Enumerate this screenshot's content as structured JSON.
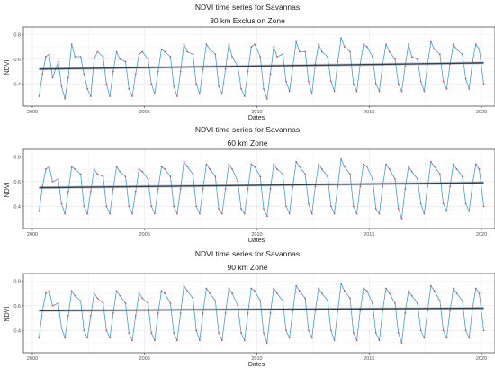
{
  "colors": {
    "panel_border": "#333333",
    "grid": "#ebebeb",
    "series_line": "#3a9fd6",
    "series_points": "#e0484a",
    "trend_line": "#2f3f4f",
    "ribbon": "#b5b5b5"
  },
  "chart_data": [
    {
      "type": "line",
      "title": "NDVI time series for Savannas",
      "subtitle": "30 km Exclusion Zone",
      "xlabel": "Dates",
      "ylabel": "NDVI",
      "xlim": [
        1999.6,
        2020.6
      ],
      "ylim": [
        0.22,
        0.86
      ],
      "xticks": [
        2000,
        2005,
        2010,
        2015,
        2020
      ],
      "yticks": [
        0.4,
        0.6,
        0.8
      ],
      "grid": true,
      "series": [
        {
          "x": [
            2000.3,
            2000.45,
            2000.6,
            2000.75,
            2000.9,
            2001.15,
            2001.3,
            2001.45,
            2001.6,
            2001.75,
            2001.9,
            2002.15,
            2002.3,
            2002.45,
            2002.6,
            2002.75,
            2002.9,
            2003.15,
            2003.3,
            2003.45,
            2003.6,
            2003.75,
            2003.9,
            2004.15,
            2004.3,
            2004.45,
            2004.6,
            2004.75,
            2004.9,
            2005.15,
            2005.3,
            2005.45,
            2005.6,
            2005.75,
            2005.9,
            2006.15,
            2006.3,
            2006.45,
            2006.6,
            2006.75,
            2006.9,
            2007.15,
            2007.3,
            2007.45,
            2007.6,
            2007.75,
            2007.9,
            2008.15,
            2008.3,
            2008.45,
            2008.6,
            2008.75,
            2008.9,
            2009.15,
            2009.3,
            2009.45,
            2009.6,
            2009.75,
            2009.9,
            2010.15,
            2010.3,
            2010.45,
            2010.6,
            2010.75,
            2010.9,
            2011.15,
            2011.3,
            2011.45,
            2011.6,
            2011.75,
            2011.9,
            2012.15,
            2012.3,
            2012.45,
            2012.6,
            2012.75,
            2012.9,
            2013.15,
            2013.3,
            2013.45,
            2013.6,
            2013.75,
            2013.9,
            2014.15,
            2014.3,
            2014.45,
            2014.6,
            2014.75,
            2014.9,
            2015.15,
            2015.3,
            2015.45,
            2015.6,
            2015.75,
            2015.9,
            2016.15,
            2016.3,
            2016.45,
            2016.6,
            2016.75,
            2016.9,
            2017.15,
            2017.3,
            2017.45,
            2017.6,
            2017.75,
            2017.9,
            2018.15,
            2018.3,
            2018.45,
            2018.6,
            2018.75,
            2018.9,
            2019.15,
            2019.3,
            2019.45,
            2019.6,
            2019.75,
            2019.9,
            2020.1
          ],
          "values": [
            0.3,
            0.48,
            0.62,
            0.64,
            0.45,
            0.58,
            0.38,
            0.28,
            0.45,
            0.72,
            0.62,
            0.62,
            0.48,
            0.36,
            0.3,
            0.6,
            0.66,
            0.62,
            0.4,
            0.3,
            0.5,
            0.66,
            0.6,
            0.58,
            0.36,
            0.3,
            0.48,
            0.64,
            0.66,
            0.6,
            0.4,
            0.32,
            0.5,
            0.68,
            0.66,
            0.62,
            0.38,
            0.3,
            0.5,
            0.72,
            0.66,
            0.64,
            0.4,
            0.32,
            0.52,
            0.72,
            0.68,
            0.64,
            0.38,
            0.32,
            0.52,
            0.72,
            0.62,
            0.54,
            0.36,
            0.3,
            0.5,
            0.7,
            0.72,
            0.62,
            0.36,
            0.28,
            0.48,
            0.7,
            0.62,
            0.64,
            0.42,
            0.34,
            0.54,
            0.74,
            0.66,
            0.66,
            0.42,
            0.32,
            0.56,
            0.72,
            0.66,
            0.62,
            0.42,
            0.34,
            0.58,
            0.77,
            0.7,
            0.66,
            0.4,
            0.34,
            0.56,
            0.72,
            0.7,
            0.62,
            0.4,
            0.34,
            0.56,
            0.72,
            0.66,
            0.6,
            0.4,
            0.34,
            0.54,
            0.72,
            0.62,
            0.6,
            0.42,
            0.34,
            0.56,
            0.74,
            0.68,
            0.64,
            0.42,
            0.36,
            0.56,
            0.72,
            0.68,
            0.64,
            0.44,
            0.36,
            0.58,
            0.72,
            0.68,
            0.4
          ]
        }
      ],
      "trend": {
        "x": [
          2000.3,
          2020.1
        ],
        "values": [
          0.52,
          0.57
        ]
      }
    },
    {
      "type": "line",
      "title": "NDVI time series for Savannas",
      "subtitle": "60 km Zone",
      "xlabel": "Dates",
      "ylabel": "NDVI",
      "xlim": [
        1999.6,
        2020.6
      ],
      "ylim": [
        0.22,
        0.86
      ],
      "xticks": [
        2000,
        2005,
        2010,
        2015,
        2020
      ],
      "yticks": [
        0.4,
        0.6,
        0.8
      ],
      "grid": true,
      "series": [
        {
          "x": [
            2000.3,
            2000.45,
            2000.6,
            2000.75,
            2000.9,
            2001.15,
            2001.3,
            2001.45,
            2001.6,
            2001.75,
            2001.9,
            2002.15,
            2002.3,
            2002.45,
            2002.6,
            2002.75,
            2002.9,
            2003.15,
            2003.3,
            2003.45,
            2003.6,
            2003.75,
            2003.9,
            2004.15,
            2004.3,
            2004.45,
            2004.6,
            2004.75,
            2004.9,
            2005.15,
            2005.3,
            2005.45,
            2005.6,
            2005.75,
            2005.9,
            2006.15,
            2006.3,
            2006.45,
            2006.6,
            2006.75,
            2006.9,
            2007.15,
            2007.3,
            2007.45,
            2007.6,
            2007.75,
            2007.9,
            2008.15,
            2008.3,
            2008.45,
            2008.6,
            2008.75,
            2008.9,
            2009.15,
            2009.3,
            2009.45,
            2009.6,
            2009.75,
            2009.9,
            2010.15,
            2010.3,
            2010.45,
            2010.6,
            2010.75,
            2010.9,
            2011.15,
            2011.3,
            2011.45,
            2011.6,
            2011.75,
            2011.9,
            2012.15,
            2012.3,
            2012.45,
            2012.6,
            2012.75,
            2012.9,
            2013.15,
            2013.3,
            2013.45,
            2013.6,
            2013.75,
            2013.9,
            2014.15,
            2014.3,
            2014.45,
            2014.6,
            2014.75,
            2014.9,
            2015.15,
            2015.3,
            2015.45,
            2015.6,
            2015.75,
            2015.9,
            2016.15,
            2016.3,
            2016.45,
            2016.6,
            2016.75,
            2016.9,
            2017.15,
            2017.3,
            2017.45,
            2017.6,
            2017.75,
            2017.9,
            2018.15,
            2018.3,
            2018.45,
            2018.6,
            2018.75,
            2018.9,
            2019.15,
            2019.3,
            2019.45,
            2019.6,
            2019.75,
            2019.9,
            2020.1
          ],
          "values": [
            0.36,
            0.56,
            0.7,
            0.72,
            0.6,
            0.62,
            0.42,
            0.34,
            0.52,
            0.72,
            0.7,
            0.66,
            0.4,
            0.34,
            0.52,
            0.7,
            0.66,
            0.64,
            0.4,
            0.34,
            0.54,
            0.72,
            0.68,
            0.64,
            0.4,
            0.34,
            0.52,
            0.7,
            0.68,
            0.62,
            0.4,
            0.34,
            0.54,
            0.72,
            0.7,
            0.64,
            0.4,
            0.34,
            0.54,
            0.76,
            0.72,
            0.66,
            0.4,
            0.34,
            0.54,
            0.74,
            0.7,
            0.64,
            0.38,
            0.34,
            0.54,
            0.74,
            0.7,
            0.6,
            0.38,
            0.34,
            0.54,
            0.74,
            0.72,
            0.64,
            0.38,
            0.32,
            0.54,
            0.74,
            0.7,
            0.66,
            0.4,
            0.34,
            0.56,
            0.76,
            0.72,
            0.66,
            0.42,
            0.34,
            0.56,
            0.74,
            0.7,
            0.64,
            0.4,
            0.34,
            0.56,
            0.78,
            0.72,
            0.66,
            0.4,
            0.34,
            0.56,
            0.74,
            0.72,
            0.62,
            0.38,
            0.34,
            0.56,
            0.74,
            0.7,
            0.62,
            0.38,
            0.3,
            0.54,
            0.72,
            0.68,
            0.62,
            0.42,
            0.34,
            0.56,
            0.76,
            0.72,
            0.66,
            0.42,
            0.36,
            0.56,
            0.74,
            0.7,
            0.64,
            0.42,
            0.36,
            0.58,
            0.74,
            0.7,
            0.4
          ]
        }
      ],
      "trend": {
        "x": [
          2000.3,
          2020.1
        ],
        "values": [
          0.55,
          0.59
        ]
      }
    },
    {
      "type": "line",
      "title": "NDVI time series for Savannas",
      "subtitle": "90 km Zone",
      "xlabel": "Dates",
      "ylabel": "NDVI",
      "xlim": [
        1999.6,
        2020.6
      ],
      "ylim": [
        0.22,
        0.86
      ],
      "xticks": [
        2000,
        2005,
        2010,
        2015,
        2020
      ],
      "yticks": [
        0.4,
        0.6,
        0.8
      ],
      "grid": true,
      "series": [
        {
          "x": [
            2000.3,
            2000.45,
            2000.6,
            2000.75,
            2000.9,
            2001.15,
            2001.3,
            2001.45,
            2001.6,
            2001.75,
            2001.9,
            2002.15,
            2002.3,
            2002.45,
            2002.6,
            2002.75,
            2002.9,
            2003.15,
            2003.3,
            2003.45,
            2003.6,
            2003.75,
            2003.9,
            2004.15,
            2004.3,
            2004.45,
            2004.6,
            2004.75,
            2004.9,
            2005.15,
            2005.3,
            2005.45,
            2005.6,
            2005.75,
            2005.9,
            2006.15,
            2006.3,
            2006.45,
            2006.6,
            2006.75,
            2006.9,
            2007.15,
            2007.3,
            2007.45,
            2007.6,
            2007.75,
            2007.9,
            2008.15,
            2008.3,
            2008.45,
            2008.6,
            2008.75,
            2008.9,
            2009.15,
            2009.3,
            2009.45,
            2009.6,
            2009.75,
            2009.9,
            2010.15,
            2010.3,
            2010.45,
            2010.6,
            2010.75,
            2010.9,
            2011.15,
            2011.3,
            2011.45,
            2011.6,
            2011.75,
            2011.9,
            2012.15,
            2012.3,
            2012.45,
            2012.6,
            2012.75,
            2012.9,
            2013.15,
            2013.3,
            2013.45,
            2013.6,
            2013.75,
            2013.9,
            2014.15,
            2014.3,
            2014.45,
            2014.6,
            2014.75,
            2014.9,
            2015.15,
            2015.3,
            2015.45,
            2015.6,
            2015.75,
            2015.9,
            2016.15,
            2016.3,
            2016.45,
            2016.6,
            2016.75,
            2016.9,
            2017.15,
            2017.3,
            2017.45,
            2017.6,
            2017.75,
            2017.9,
            2018.15,
            2018.3,
            2018.45,
            2018.6,
            2018.75,
            2018.9,
            2019.15,
            2019.3,
            2019.45,
            2019.6,
            2019.75,
            2019.9,
            2020.1
          ],
          "values": [
            0.34,
            0.56,
            0.7,
            0.72,
            0.6,
            0.62,
            0.42,
            0.34,
            0.52,
            0.72,
            0.68,
            0.64,
            0.4,
            0.34,
            0.52,
            0.7,
            0.66,
            0.62,
            0.4,
            0.34,
            0.54,
            0.72,
            0.68,
            0.62,
            0.38,
            0.32,
            0.52,
            0.7,
            0.66,
            0.62,
            0.38,
            0.32,
            0.54,
            0.72,
            0.7,
            0.62,
            0.38,
            0.32,
            0.54,
            0.76,
            0.72,
            0.66,
            0.4,
            0.32,
            0.54,
            0.74,
            0.7,
            0.64,
            0.38,
            0.32,
            0.54,
            0.74,
            0.7,
            0.6,
            0.38,
            0.32,
            0.54,
            0.74,
            0.72,
            0.64,
            0.38,
            0.3,
            0.54,
            0.74,
            0.7,
            0.64,
            0.4,
            0.34,
            0.56,
            0.76,
            0.72,
            0.66,
            0.4,
            0.34,
            0.56,
            0.74,
            0.7,
            0.64,
            0.4,
            0.32,
            0.56,
            0.78,
            0.72,
            0.66,
            0.38,
            0.32,
            0.56,
            0.74,
            0.72,
            0.62,
            0.38,
            0.32,
            0.56,
            0.74,
            0.7,
            0.62,
            0.38,
            0.3,
            0.54,
            0.72,
            0.68,
            0.62,
            0.4,
            0.34,
            0.56,
            0.76,
            0.72,
            0.64,
            0.4,
            0.34,
            0.56,
            0.74,
            0.7,
            0.64,
            0.4,
            0.34,
            0.58,
            0.74,
            0.7,
            0.4
          ]
        }
      ],
      "trend": {
        "x": [
          2000.3,
          2020.1
        ],
        "values": [
          0.56,
          0.58
        ]
      }
    }
  ]
}
